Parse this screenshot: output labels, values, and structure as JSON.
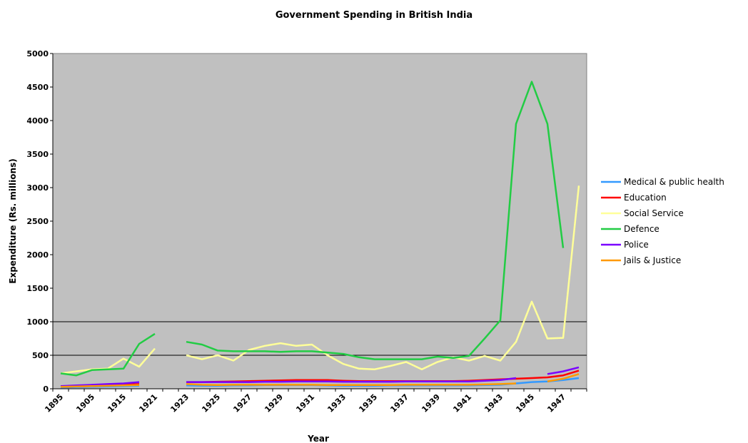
{
  "chart_data": {
    "type": "line",
    "title": "Government Spending in British India",
    "xlabel": "Year",
    "ylabel": "Expenditure (Rs. millions)",
    "ylim": [
      0,
      5000
    ],
    "yticks": [
      0,
      500,
      1000,
      1500,
      2000,
      2500,
      3000,
      3500,
      4000,
      4500,
      5000
    ],
    "ytick_labels": [
      "0",
      "500",
      "1000",
      "1500",
      "2000",
      "2500",
      "3000",
      "3500",
      "4000",
      "4500",
      "5000"
    ],
    "grid_y": [
      500,
      1000
    ],
    "legend_position": "right",
    "plot_background": "#c0c0c0",
    "categories": [
      "1895",
      "1900",
      "1905",
      "1910",
      "1915",
      "1918",
      "1921",
      "1922",
      "1923",
      "1924",
      "1925",
      "1926",
      "1927",
      "1928",
      "1929",
      "1930",
      "1931",
      "1932",
      "1933",
      "1934",
      "1935",
      "1936",
      "1937",
      "1938",
      "1939",
      "1940",
      "1941",
      "1942",
      "1943",
      "1944",
      "1945",
      "1946",
      "1947",
      "1948"
    ],
    "xtick_labels": [
      "1895",
      "1905",
      "1915",
      "1921",
      "1923",
      "1925",
      "1927",
      "1929",
      "1931",
      "1933",
      "1935",
      "1937",
      "1939",
      "1941",
      "1943",
      "1945",
      "1947"
    ],
    "series": [
      {
        "name": "Medical & public health",
        "color": "#3399ff",
        "values": [
          20,
          25,
          30,
          35,
          40,
          45,
          null,
          null,
          50,
          45,
          45,
          50,
          50,
          55,
          55,
          55,
          55,
          50,
          45,
          45,
          45,
          50,
          50,
          50,
          50,
          50,
          50,
          55,
          60,
          80,
          100,
          110,
          130,
          160
        ]
      },
      {
        "name": "Education",
        "color": "#ff0000",
        "values": [
          30,
          35,
          40,
          50,
          60,
          70,
          null,
          null,
          100,
          100,
          105,
          110,
          115,
          120,
          125,
          130,
          130,
          130,
          120,
          115,
          115,
          115,
          115,
          115,
          115,
          115,
          120,
          130,
          140,
          150,
          160,
          170,
          200,
          270
        ]
      },
      {
        "name": "Social Service",
        "color": "#ffff99",
        "values": [
          230,
          260,
          290,
          300,
          450,
          330,
          600,
          null,
          500,
          440,
          500,
          420,
          580,
          640,
          680,
          640,
          660,
          500,
          370,
          300,
          290,
          340,
          400,
          290,
          400,
          470,
          420,
          490,
          420,
          700,
          1300,
          750,
          760,
          3030
        ]
      },
      {
        "name": "Defence",
        "color": "#22cc44",
        "values": [
          230,
          200,
          280,
          290,
          300,
          670,
          820,
          null,
          700,
          660,
          570,
          560,
          560,
          560,
          550,
          560,
          560,
          540,
          520,
          470,
          440,
          440,
          440,
          440,
          480,
          460,
          490,
          750,
          1020,
          3950,
          4580,
          3950,
          2100,
          null
        ]
      },
      {
        "name": "Police",
        "color": "#7a00ff",
        "values": [
          40,
          50,
          60,
          70,
          80,
          100,
          null,
          null,
          100,
          100,
          100,
          100,
          100,
          105,
          105,
          110,
          110,
          110,
          105,
          105,
          105,
          105,
          110,
          110,
          110,
          110,
          110,
          120,
          130,
          160,
          null,
          220,
          260,
          320
        ]
      },
      {
        "name": "Jails & Justice",
        "color": "#ff9900",
        "values": [
          30,
          35,
          40,
          45,
          50,
          55,
          null,
          null,
          70,
          60,
          55,
          60,
          60,
          60,
          60,
          60,
          60,
          55,
          55,
          55,
          55,
          55,
          60,
          60,
          60,
          60,
          60,
          65,
          70,
          80,
          null,
          110,
          150,
          220
        ]
      }
    ]
  }
}
